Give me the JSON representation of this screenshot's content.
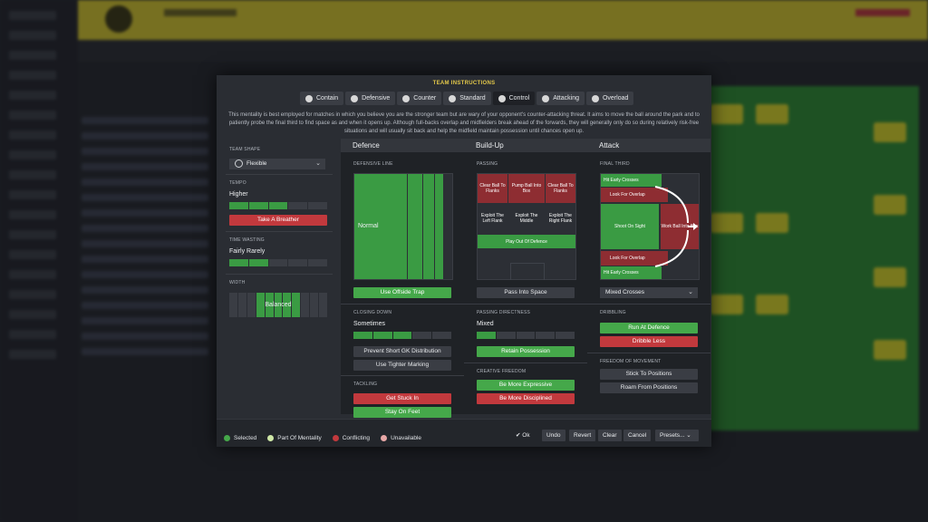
{
  "modal": {
    "title": "TEAM INSTRUCTIONS",
    "tabs": [
      {
        "label": "Contain",
        "icon": "contain-icon"
      },
      {
        "label": "Defensive",
        "icon": "defensive-icon"
      },
      {
        "label": "Counter",
        "icon": "counter-icon"
      },
      {
        "label": "Standard",
        "icon": "standard-icon"
      },
      {
        "label": "Control",
        "icon": "control-icon",
        "active": true
      },
      {
        "label": "Attacking",
        "icon": "attacking-icon"
      },
      {
        "label": "Overload",
        "icon": "overload-icon"
      }
    ],
    "description": "This mentality is best employed for matches in which you believe you are the stronger team but are wary of your opponent's counter-attacking threat. It aims to move the ball around the park and to patiently probe the final third to find space as and when it opens up. Although full-backs overlap and midfielders break ahead of the forwards, they will generally only do so during relatively risk-free situations and will usually sit back and help the midfield maintain possession until chances open up."
  },
  "left": {
    "team_shape_label": "TEAM SHAPE",
    "team_shape_value": "Flexible",
    "tempo_label": "TEMPO",
    "tempo_value": "Higher",
    "tempo_level": 0.6,
    "tempo_button": "Take A Breather",
    "time_wasting_label": "TIME WASTING",
    "time_wasting_value": "Fairly Rarely",
    "time_wasting_level": 0.4,
    "width_label": "WIDTH",
    "width_value": "Balanced"
  },
  "defence": {
    "header": "Defence",
    "defensive_line_label": "DEFENSIVE LINE",
    "defensive_line_value": "Normal",
    "offside_button": "Use Offside Trap",
    "closing_down_label": "CLOSING DOWN",
    "closing_down_value": "Sometimes",
    "closing_down_level": 0.5,
    "gk_button": "Prevent Short GK Distribution",
    "marking_button": "Use Tighter Marking",
    "tackling_label": "TACKLING",
    "get_stuck_in": "Get Stuck In",
    "stay_on_feet": "Stay On Feet"
  },
  "buildup": {
    "header": "Build-Up",
    "passing_label": "PASSING",
    "pass_cells": {
      "clear_left": "Clear Ball To Flanks",
      "pump": "Pump Ball Into Box",
      "clear_right": "Clear Ball To Flanks",
      "exploit_left": "Exploit The Left Flank",
      "exploit_middle": "Exploit The Middle",
      "exploit_right": "Exploit The Right Flank",
      "play_out": "Play Out Of Defence"
    },
    "pass_space_button": "Pass Into Space",
    "directness_label": "PASSING DIRECTNESS",
    "directness_value": "Mixed",
    "directness_level": 0.2,
    "retain_button": "Retain Possession",
    "creative_label": "CREATIVE FREEDOM",
    "expressive_button": "Be More Expressive",
    "disciplined_button": "Be More Disciplined"
  },
  "attack": {
    "header": "Attack",
    "final_third_label": "FINAL THIRD",
    "cells": {
      "hit_early_top": "Hit Early Crosses",
      "overlap_top": "Look For Overlap",
      "shoot": "Shoot On Sight",
      "work_ball": "Work Ball Into Box",
      "overlap_bottom": "Look For Overlap",
      "hit_early_bottom": "Hit Early Crosses"
    },
    "crosses_value": "Mixed Crosses",
    "dribbling_label": "DRIBBLING",
    "run_at_defence": "Run At Defence",
    "dribble_less": "Dribble Less",
    "freedom_label": "FREEDOM OF MOVEMENT",
    "stick_button": "Stick To Positions",
    "roam_button": "Roam From Positions"
  },
  "legend": {
    "selected": "Selected",
    "part_of_mentality": "Part Of Mentality",
    "conflicting": "Conflicting",
    "unavailable": "Unavailable",
    "colors": {
      "selected": "#45a84a",
      "part": "#cfe8a7",
      "conflicting": "#c2393d",
      "unavailable": "#e7a7a6"
    }
  },
  "footer": {
    "ok": "Ok",
    "undo": "Undo",
    "revert": "Revert",
    "clear": "Clear",
    "cancel": "Cancel",
    "presets": "Presets..."
  }
}
